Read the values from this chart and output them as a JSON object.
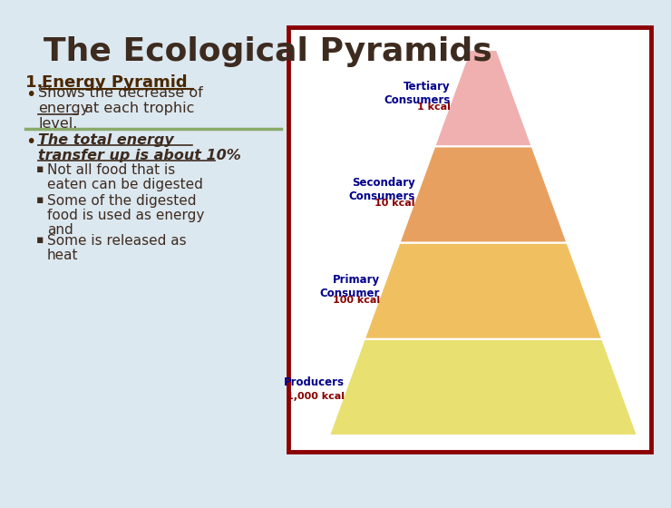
{
  "title": "The Ecological Pyramids",
  "title_color": "#3d2b1f",
  "title_fontsize": 26,
  "slide_bg": "#dce8f0",
  "heading1_num": "1. ",
  "heading1_text": "Energy Pyramid",
  "heading1_color": "#4a2800",
  "heading1_fontsize": 13,
  "bullet1_lines": [
    "Shows the decrease of",
    "energy at each trophic",
    "level."
  ],
  "bullet1_underline": [
    false,
    true,
    false
  ],
  "bullet2_lines": [
    "The total energy",
    "transfer up is about 10%"
  ],
  "sub_bullets": [
    [
      "Not all food that is",
      "eaten can be digested"
    ],
    [
      "Some of the digested",
      "food is used as energy",
      "and"
    ],
    [
      "Some is released as",
      "heat"
    ]
  ],
  "pyramid_levels": [
    {
      "label": "Producers",
      "kcal": "1,000 kcal",
      "color": "#e8e070"
    },
    {
      "label": "Primary\nConsumer",
      "kcal": "100 kcal",
      "color": "#f0c060"
    },
    {
      "label": "Secondary\nConsumers",
      "kcal": "10 kcal",
      "color": "#e8a060"
    },
    {
      "label": "Tertiary\nConsumers",
      "kcal": "1 kcal",
      "color": "#f0b0b0"
    }
  ],
  "pyramid_border_color": "#8b0000",
  "label_color": "#00008b",
  "kcal_color": "#8b0000",
  "separator_line_color": "#8aaa6a",
  "text_color": "#3d2b1f"
}
